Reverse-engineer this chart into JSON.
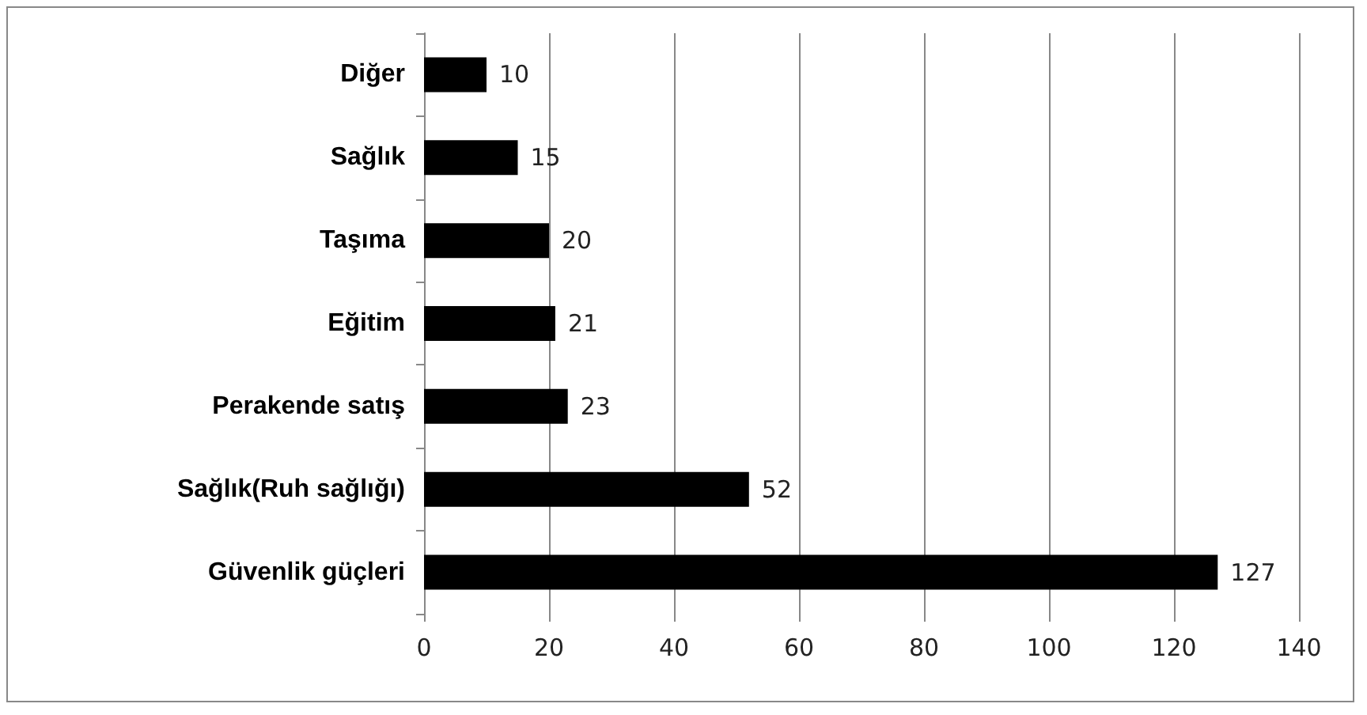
{
  "chart_data": {
    "type": "bar",
    "orientation": "horizontal",
    "categories": [
      "Diğer",
      "Sağlık",
      "Taşıma",
      "Eğitim",
      "Perakende satış",
      "Sağlık(Ruh sağlığı)",
      "Güvenlik güçleri"
    ],
    "values": [
      10,
      15,
      20,
      21,
      23,
      52,
      127
    ],
    "color": "#000000",
    "xlim": [
      0,
      140
    ],
    "xticks": [
      0,
      20,
      40,
      60,
      80,
      100,
      120,
      140
    ],
    "grid": "x",
    "data_labels": true
  }
}
